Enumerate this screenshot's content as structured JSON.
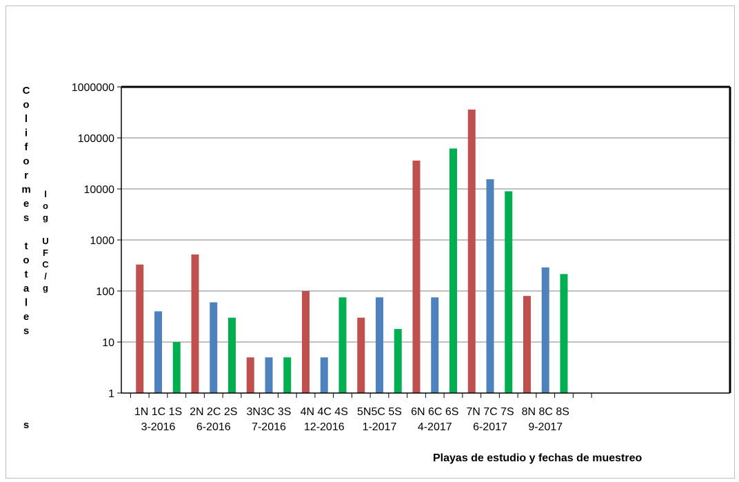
{
  "chart_data": {
    "type": "bar",
    "yscale": "log",
    "ylim": [
      1,
      1000000
    ],
    "yticks": [
      "1",
      "10",
      "100",
      "1000",
      "10000",
      "100000",
      "1000000"
    ],
    "ylabel_main": "Coliformes totales",
    "ylabel_main_trailing": "s",
    "ylabel_unit": "log UFC/g",
    "xlabel": "Playas de estudio y fechas de muestreo",
    "grid": true,
    "categories": [
      {
        "line1": "1N 1C 1S",
        "line2": "3-2016"
      },
      {
        "line1": "2N 2C 2S",
        "line2": "6-2016"
      },
      {
        "line1": "3N3C 3S",
        "line2": "7-2016"
      },
      {
        "line1": "4N 4C 4S",
        "line2": "12-2016"
      },
      {
        "line1": "5N5C 5S",
        "line2": "1-2017"
      },
      {
        "line1": "6N 6C 6S",
        "line2": "4-2017"
      },
      {
        "line1": "7N 7C 7S",
        "line2": "6-2017"
      },
      {
        "line1": "8N 8C 8S",
        "line2": "9-2017"
      }
    ],
    "series": [
      {
        "color": "#c0504d",
        "values": [
          330,
          520,
          5,
          100,
          30,
          36000,
          360000,
          80
        ]
      },
      {
        "color": "#4f81bd",
        "values": [
          40,
          60,
          5,
          5,
          75,
          75,
          15500,
          290
        ]
      },
      {
        "color": "#00b050",
        "values": [
          10,
          30,
          5,
          75,
          18,
          62000,
          9000,
          215
        ]
      }
    ]
  }
}
